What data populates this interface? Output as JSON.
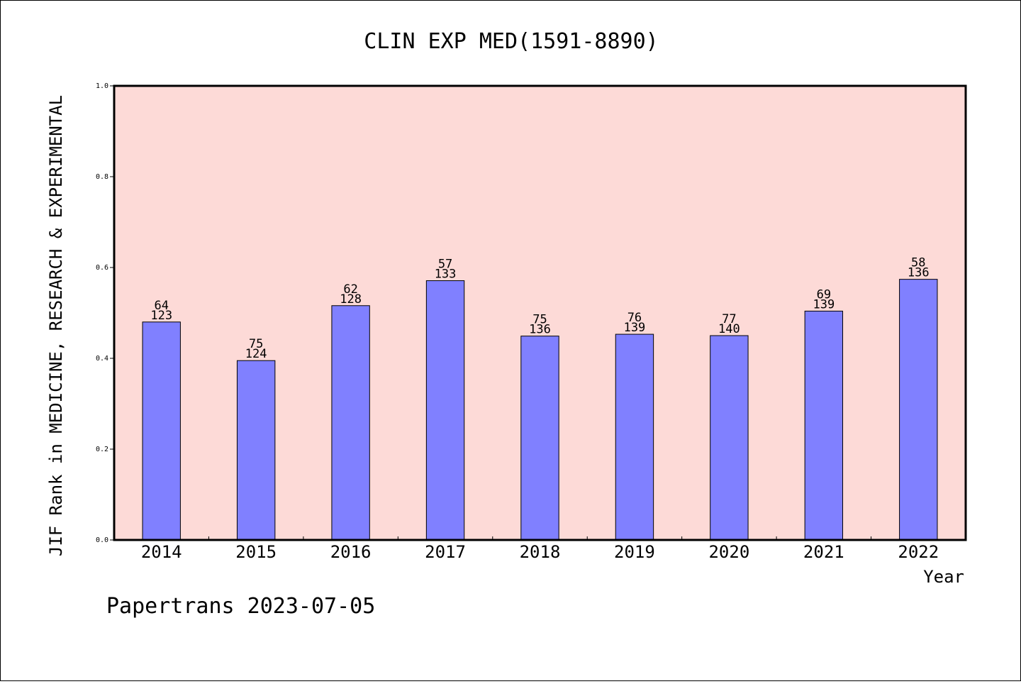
{
  "chart_data": {
    "type": "bar",
    "title": "CLIN EXP MED(1591-8890)",
    "xlabel": "Year",
    "ylabel": "JIF Rank in MEDICINE, RESEARCH & EXPERIMENTAL",
    "ylim": [
      0,
      1.0
    ],
    "yticks": [
      "0.0",
      "0.2",
      "0.4",
      "0.6",
      "0.8",
      "1.0"
    ],
    "categories": [
      "2014",
      "2015",
      "2016",
      "2017",
      "2018",
      "2019",
      "2020",
      "2021",
      "2022"
    ],
    "values": [
      0.48,
      0.395,
      0.516,
      0.571,
      0.449,
      0.453,
      0.45,
      0.504,
      0.574
    ],
    "rank": [
      "64",
      "75",
      "62",
      "57",
      "75",
      "76",
      "77",
      "69",
      "58"
    ],
    "total": [
      "123",
      "124",
      "128",
      "133",
      "136",
      "139",
      "140",
      "139",
      "136"
    ],
    "grid": false,
    "colors": {
      "bar": "#8080ff",
      "plot_background": "#fddad7"
    }
  },
  "footer": "Papertrans 2023-07-05"
}
